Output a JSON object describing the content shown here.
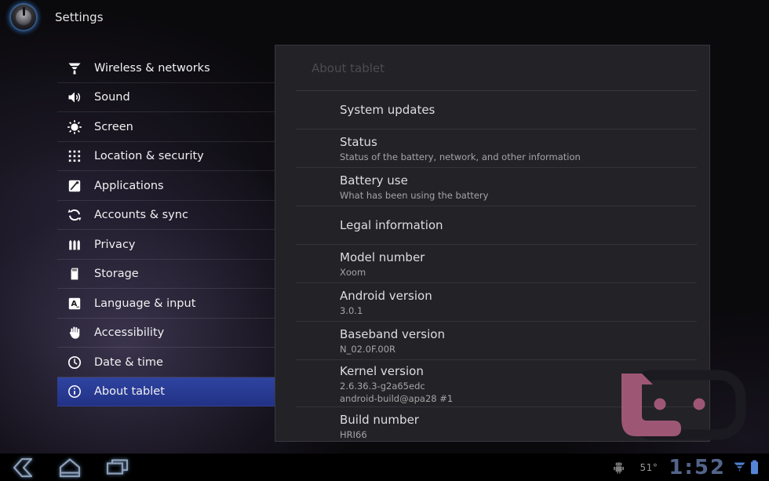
{
  "header": {
    "app_title": "Settings",
    "app_icon": "settings-gear-icon"
  },
  "sidebar": {
    "selected_index": 11,
    "items": [
      {
        "label": "Wireless & networks",
        "icon": "wireless-networks-icon"
      },
      {
        "label": "Sound",
        "icon": "speaker-icon"
      },
      {
        "label": "Screen",
        "icon": "brightness-icon"
      },
      {
        "label": "Location & security",
        "icon": "location-dots-icon"
      },
      {
        "label": "Applications",
        "icon": "applications-icon"
      },
      {
        "label": "Accounts & sync",
        "icon": "sync-arrows-icon"
      },
      {
        "label": "Privacy",
        "icon": "fence-icon"
      },
      {
        "label": "Storage",
        "icon": "sd-card-icon"
      },
      {
        "label": "Language & input",
        "icon": "language-a-icon"
      },
      {
        "label": "Accessibility",
        "icon": "hand-icon"
      },
      {
        "label": "Date & time",
        "icon": "clock-icon"
      },
      {
        "label": "About tablet",
        "icon": "info-icon"
      }
    ]
  },
  "panel": {
    "title": "About tablet",
    "items": [
      {
        "title": "System updates"
      },
      {
        "title": "Status",
        "subtitle": "Status of the battery, network, and other information",
        "action": true
      },
      {
        "title": "Battery use",
        "subtitle": "What has been using the battery",
        "action": true
      },
      {
        "title": "Legal information",
        "action": true
      },
      {
        "title": "Model number",
        "subtitle": "Xoom"
      },
      {
        "title": "Android version",
        "subtitle": "3.0.1"
      },
      {
        "title": "Baseband version",
        "subtitle": "N_02.0F.00R"
      },
      {
        "title": "Kernel version",
        "subtitle": "2.6.36.3-g2a65edc",
        "subtitle2": "android-build@apa28 #1"
      },
      {
        "title": "Build number",
        "subtitle": "HRI66",
        "clipped": true
      }
    ]
  },
  "system_bar": {
    "nav": [
      {
        "name": "back-icon"
      },
      {
        "name": "home-icon"
      },
      {
        "name": "recent-apps-icon"
      }
    ],
    "status": {
      "robot_icon": "android-robot-icon",
      "temperature": "51°",
      "time": "1:52",
      "wifi_icon": "wifi-signal-icon",
      "battery_icon": "battery-icon"
    }
  },
  "watermark": {
    "name": "droid-life-logo"
  },
  "colors": {
    "selected_row_blue": "#2a3d99",
    "status_blue": "#4d80d0",
    "battery_blue": "#5585d8",
    "watermark_pink": "#a85c7c",
    "panel_bg": "#232227",
    "screen_bg": "#0a090c"
  }
}
